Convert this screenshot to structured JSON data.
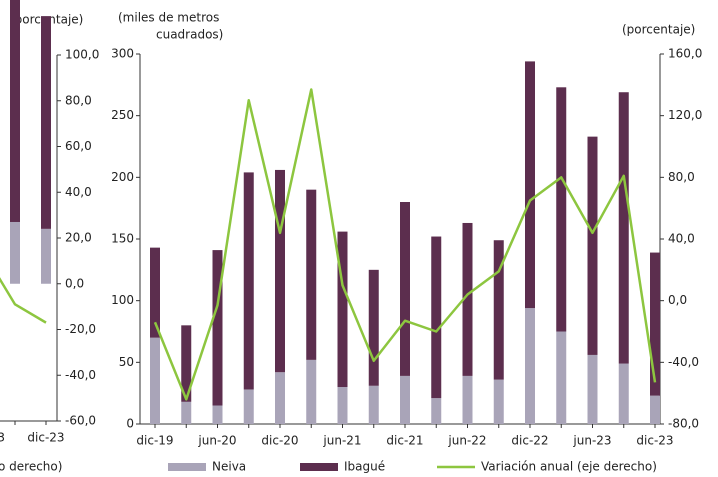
{
  "chart_data": [
    {
      "type": "bar",
      "stacked": true,
      "y2label": "(porcentaje)",
      "legend_fragment": "o derecho)",
      "categories": [
        "3",
        null,
        "dic-23"
      ],
      "series": [
        {
          "name": null,
          "color": "#a9a4b8",
          "axis": "y2",
          "values": [
            null,
            27,
            24
          ]
        },
        {
          "name": null,
          "color": "#5c2e4e",
          "axis": "y2",
          "values": [
            null,
            106,
            93
          ]
        },
        {
          "name": null,
          "color": "#8dc63f",
          "type": "line",
          "axis": "y2",
          "values": [
            12,
            -9,
            -17
          ]
        }
      ],
      "y2lim": [
        -60,
        100
      ],
      "y2ticks": [
        {
          "value": 100,
          "label": "100,0"
        },
        {
          "value": 80,
          "label": "80,0"
        },
        {
          "value": 60,
          "label": "60,0"
        },
        {
          "value": 40,
          "label": "40,0"
        },
        {
          "value": 20,
          "label": "20,0"
        },
        {
          "value": 0,
          "label": "0,0"
        },
        {
          "value": -20,
          "label": "-20,0"
        },
        {
          "value": -40,
          "label": "-40,0"
        },
        {
          "value": -60,
          "label": "-60,0"
        }
      ]
    },
    {
      "type": "bar",
      "stacked": true,
      "ylabel": [
        "(miles de metros",
        "cuadrados)"
      ],
      "y2label": "(porcentaje)",
      "categories": [
        "dic-19",
        null,
        "jun-20",
        null,
        "dic-20",
        null,
        "jun-21",
        null,
        "dic-21",
        null,
        "jun-22",
        null,
        "dic-22",
        null,
        "jun-23",
        null,
        "dic-23"
      ],
      "series": [
        {
          "name": "Neiva",
          "color": "#a9a4b8",
          "values": [
            70,
            18,
            15,
            28,
            42,
            52,
            30,
            31,
            39,
            21,
            39,
            36,
            94,
            75,
            56,
            49,
            23
          ]
        },
        {
          "name": "Ibagué",
          "color": "#5c2e4e",
          "values": [
            73,
            62,
            126,
            176,
            164,
            138,
            126,
            94,
            141,
            131,
            124,
            113,
            200,
            198,
            177,
            220,
            116
          ]
        },
        {
          "name": "Variación anual  (eje derecho)",
          "color": "#8dc63f",
          "type": "line",
          "axis": "y2",
          "values": [
            -14,
            -64,
            -3,
            130,
            44,
            137,
            10,
            -39,
            -13,
            -20,
            4,
            19,
            65,
            80,
            44,
            81,
            -53
          ]
        }
      ],
      "ylim": [
        0,
        300
      ],
      "yticks": [
        0,
        50,
        100,
        150,
        200,
        250,
        300
      ],
      "y2lim": [
        -80,
        160
      ],
      "y2ticks": [
        {
          "value": 160,
          "label": "160,0"
        },
        {
          "value": 120,
          "label": "120,0"
        },
        {
          "value": 80,
          "label": "80,0"
        },
        {
          "value": 40,
          "label": "40,0"
        },
        {
          "value": 0,
          "label": "0,0"
        },
        {
          "value": -40,
          "label": "-40,0"
        },
        {
          "value": -80,
          "label": "-80,0"
        }
      ]
    }
  ]
}
